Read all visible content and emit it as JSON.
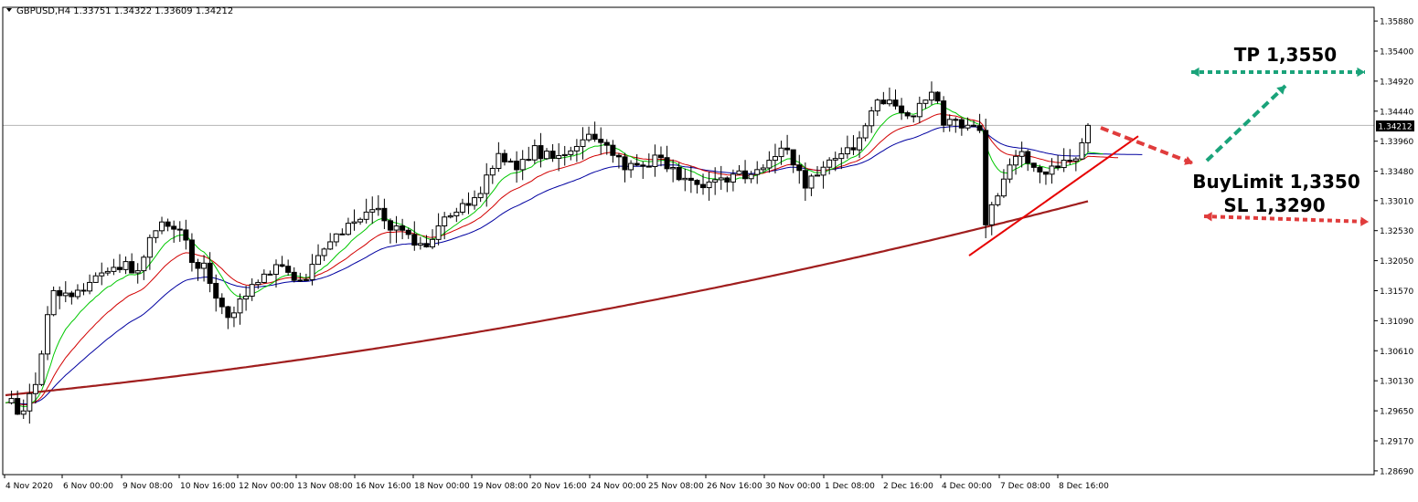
{
  "header": {
    "symbol_line": "GBPUSD,H4  1.33751 1.34322 1.33609 1.34212"
  },
  "colors": {
    "background": "#ffffff",
    "grid": "#c8c8c8",
    "axis": "#000000",
    "candle_bull": "#ffffff",
    "candle_bear": "#000000",
    "ma_green": "#00c800",
    "ma_red": "#d20000",
    "ma_blue": "#0000a0",
    "ma_slow": "#a01e1e",
    "trendline": "#e60000",
    "tp_arrow": "#1aa37a",
    "sl_arrow": "#e03c3c"
  },
  "annotations": {
    "tp_label": "TP 1,3550",
    "buy_limit_label": "BuyLimit 1,3350",
    "sl_label": "SL 1,3290"
  },
  "chart_data": {
    "type": "candlestick",
    "symbol": "GBPUSD",
    "timeframe": "H4",
    "ylim": [
      1.2863,
      1.361
    ],
    "y_ticks": [
      "1.35880",
      "1.35400",
      "1.34920",
      "1.34440",
      "1.33960",
      "1.33480",
      "1.33010",
      "1.32530",
      "1.32050",
      "1.31570",
      "1.31090",
      "1.30610",
      "1.30130",
      "1.29650",
      "1.29170",
      "1.28690"
    ],
    "current_price": "1.34212",
    "x_ticks": [
      "4 Nov 2020",
      "6 Nov 00:00",
      "9 Nov 08:00",
      "10 Nov 16:00",
      "12 Nov 00:00",
      "13 Nov 08:00",
      "16 Nov 16:00",
      "18 Nov 00:00",
      "19 Nov 08:00",
      "20 Nov 16:00",
      "24 Nov 00:00",
      "25 Nov 08:00",
      "26 Nov 16:00",
      "30 Nov 00:00",
      "1 Dec 08:00",
      "2 Dec 16:00",
      "4 Dec 00:00",
      "7 Dec 08:00",
      "8 Dec 16:00"
    ],
    "grid": true,
    "trend_lines": [
      {
        "from": [
          1.3215
        ],
        "to": [
          1.34
        ]
      }
    ],
    "levels": {
      "tp": 1.355,
      "buy_limit": 1.335,
      "sl": 1.329
    }
  }
}
